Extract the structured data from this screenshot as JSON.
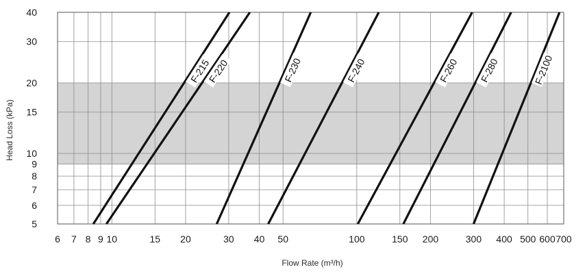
{
  "chart_data": {
    "type": "line",
    "xlabel": "Flow Rate (m³/h)",
    "ylabel": "Head Loss (kPa)",
    "x_scale": "log",
    "y_scale": "log",
    "xlim": [
      6,
      700
    ],
    "ylim": [
      5,
      40
    ],
    "x_ticks": [
      6,
      7,
      8,
      9,
      10,
      15,
      20,
      30,
      40,
      50,
      100,
      150,
      200,
      300,
      400,
      500,
      600,
      700
    ],
    "x_tick_labels": [
      "6",
      "7",
      "8",
      "9",
      "10",
      "15",
      "20",
      "30",
      "40",
      "50",
      "100",
      "150",
      "200",
      "300",
      "400",
      "500",
      "600",
      "700"
    ],
    "y_ticks": [
      5,
      6,
      7,
      8,
      9,
      10,
      15,
      20,
      30,
      40
    ],
    "y_tick_labels": [
      "5",
      "6",
      "7",
      "8",
      "9",
      "10",
      "15",
      "20",
      "30",
      "40"
    ],
    "grid": true,
    "shaded_band": {
      "y_min": 9,
      "y_max": 20,
      "color": "#d4d4d4"
    },
    "series": [
      {
        "name": "F-215",
        "x": [
          8.4,
          30.2
        ],
        "y": [
          5,
          40
        ]
      },
      {
        "name": "F-220",
        "x": [
          9.5,
          36.6
        ],
        "y": [
          5,
          40
        ]
      },
      {
        "name": "F-230",
        "x": [
          26.8,
          64.9
        ],
        "y": [
          5,
          40
        ]
      },
      {
        "name": "F-240",
        "x": [
          43.5,
          123.0
        ],
        "y": [
          5,
          40
        ]
      },
      {
        "name": "F-260",
        "x": [
          101.0,
          296.0
        ],
        "y": [
          5,
          40
        ]
      },
      {
        "name": "F-280",
        "x": [
          155.0,
          427.0
        ],
        "y": [
          5,
          40
        ]
      },
      {
        "name": "F-2100",
        "x": [
          300.0,
          673.0
        ],
        "y": [
          5,
          40
        ]
      }
    ],
    "line_color": "#111111"
  }
}
